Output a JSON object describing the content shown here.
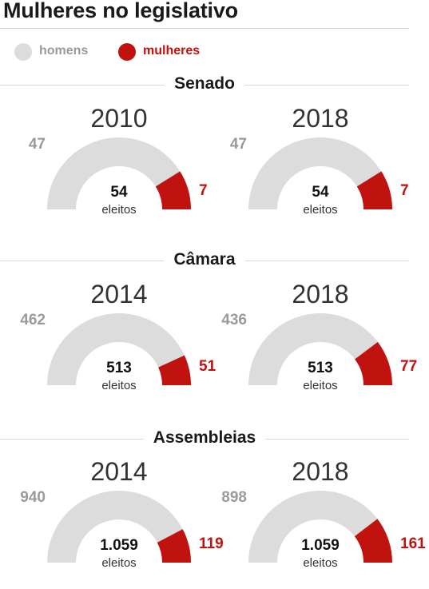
{
  "title": "Mulheres no legislativo",
  "legend": [
    {
      "label": "homens",
      "color": "#dcdcdc",
      "text_color": "#9a9a9a"
    },
    {
      "label": "mulheres",
      "color": "#c0120f",
      "text_color": "#c0120f"
    }
  ],
  "chart_data": {
    "type": "gauge",
    "sections": [
      {
        "title": "Senado",
        "gauges": [
          {
            "year": "2010",
            "homens": "47",
            "mulheres": "7",
            "total": "54",
            "total_label": "eleitos",
            "homens_value": 47,
            "mulheres_value": 7
          },
          {
            "year": "2018",
            "homens": "47",
            "mulheres": "7",
            "total": "54",
            "total_label": "eleitos",
            "homens_value": 47,
            "mulheres_value": 7
          }
        ]
      },
      {
        "title": "Câmara",
        "gauges": [
          {
            "year": "2014",
            "homens": "462",
            "mulheres": "51",
            "total": "513",
            "total_label": "eleitos",
            "homens_value": 462,
            "mulheres_value": 51
          },
          {
            "year": "2018",
            "homens": "436",
            "mulheres": "77",
            "total": "513",
            "total_label": "eleitos",
            "homens_value": 436,
            "mulheres_value": 77
          }
        ]
      },
      {
        "title": "Assembleias",
        "gauges": [
          {
            "year": "2014",
            "homens": "940",
            "mulheres": "119",
            "total": "1.059",
            "total_label": "eleitos",
            "homens_value": 940,
            "mulheres_value": 119
          },
          {
            "year": "2018",
            "homens": "898",
            "mulheres": "161",
            "total": "1.059",
            "total_label": "eleitos",
            "homens_value": 898,
            "mulheres_value": 161
          }
        ]
      }
    ]
  }
}
